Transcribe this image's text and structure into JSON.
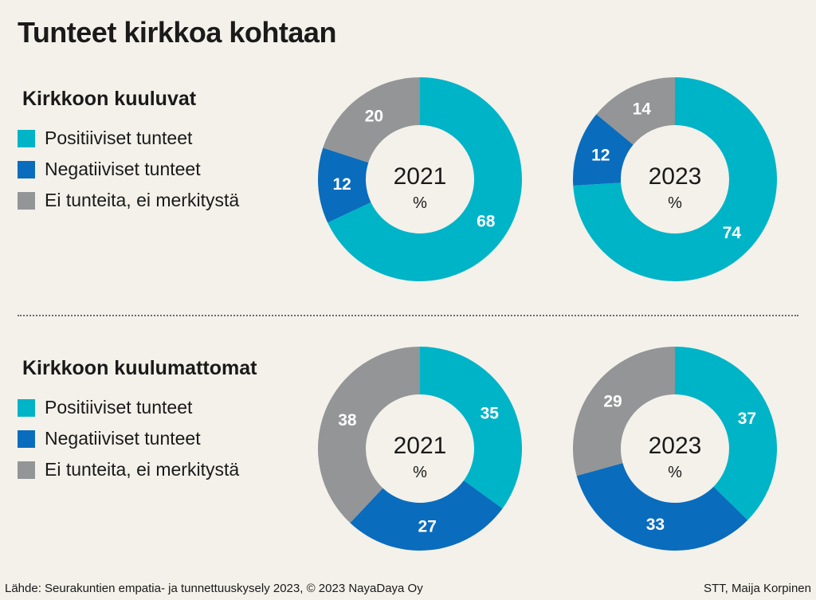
{
  "title": "Tunteet kirkkoa kohtaan",
  "legend": {
    "items": [
      {
        "label": "Positiiviset tunteet",
        "color": "#00b4c8"
      },
      {
        "label": "Negatiiviset tunteet",
        "color": "#0a6cbd"
      },
      {
        "label": "Ei tunteita, ei merkitystä",
        "color": "#939597"
      }
    ]
  },
  "unit": "%",
  "chart_data": [
    {
      "type": "pie",
      "group": "Kirkkoon kuuluvat",
      "center_label": "2021",
      "categories": [
        "Positiiviset tunteet",
        "Negatiiviset tunteet",
        "Ei tunteita, ei merkitystä"
      ],
      "values": [
        68,
        12,
        20
      ]
    },
    {
      "type": "pie",
      "group": "Kirkkoon kuuluvat",
      "center_label": "2023",
      "categories": [
        "Positiiviset tunteet",
        "Negatiiviset tunteet",
        "Ei tunteita, ei merkitystä"
      ],
      "values": [
        74,
        12,
        14
      ]
    },
    {
      "type": "pie",
      "group": "Kirkkoon kuulumattomat",
      "center_label": "2021",
      "categories": [
        "Positiiviset tunteet",
        "Negatiiviset tunteet",
        "Ei tunteita, ei merkitystä"
      ],
      "values": [
        35,
        27,
        38
      ]
    },
    {
      "type": "pie",
      "group": "Kirkkoon kuulumattomat",
      "center_label": "2023",
      "categories": [
        "Positiiviset tunteet",
        "Negatiiviset tunteet",
        "Ei tunteita, ei merkitystä"
      ],
      "values": [
        37,
        33,
        29
      ]
    }
  ],
  "sections": [
    {
      "title": "Kirkkoon kuuluvat"
    },
    {
      "title": "Kirkkoon kuulumattomat"
    }
  ],
  "footer": {
    "source": "Lähde: Seurakuntien empatia- ja tunnettuuskysely 2023, © 2023 NayaDaya Oy",
    "credit": "STT, Maija Korpinen"
  }
}
